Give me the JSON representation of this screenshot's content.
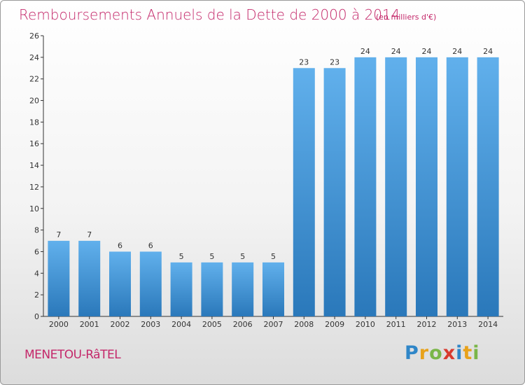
{
  "chart_data": {
    "type": "bar",
    "title": "Remboursements Annuels de la Dette de 2000 à 2014",
    "unit_note": "(en milliers d'€)",
    "categories": [
      "2000",
      "2001",
      "2002",
      "2003",
      "2004",
      "2005",
      "2006",
      "2007",
      "2008",
      "2009",
      "2010",
      "2011",
      "2012",
      "2013",
      "2014"
    ],
    "values": [
      7,
      7,
      6,
      6,
      5,
      5,
      5,
      5,
      23,
      23,
      24,
      24,
      24,
      24,
      24
    ],
    "ylim": [
      0,
      26
    ],
    "yticks": [
      "0",
      "2",
      "4",
      "6",
      "8",
      "10",
      "12",
      "14",
      "16",
      "18",
      "20",
      "22",
      "24",
      "26"
    ],
    "xlabel": "",
    "ylabel": "",
    "grid": false,
    "bar_color_light": "#61b0ec",
    "bar_color_dark": "#2a78ba"
  },
  "footer": {
    "commune": "MENETOU-RâTEL",
    "logo_letters": [
      {
        "ch": "P",
        "color": "#2f86c8"
      },
      {
        "ch": "r",
        "color": "#e8a21b"
      },
      {
        "ch": "o",
        "color": "#7ab648"
      },
      {
        "ch": "x",
        "color": "#d83a2e"
      },
      {
        "ch": "i",
        "color": "#2f86c8"
      },
      {
        "ch": "t",
        "color": "#e8a21b"
      },
      {
        "ch": "i",
        "color": "#7ab648"
      }
    ]
  }
}
